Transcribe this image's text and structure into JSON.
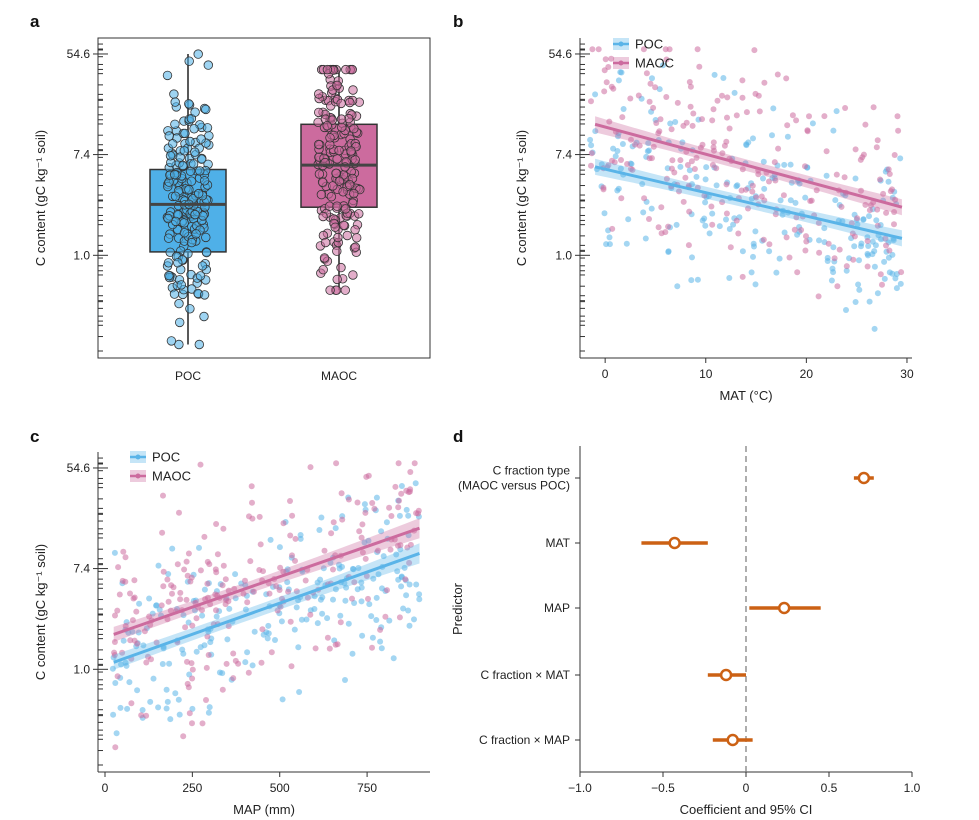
{
  "panels": {
    "a": {
      "letter": "a"
    },
    "b": {
      "letter": "b"
    },
    "c": {
      "letter": "c"
    },
    "d": {
      "letter": "d"
    }
  },
  "colors": {
    "poc": "#5ab4e8",
    "maoc": "#cc6b9e",
    "coef": "#cc6114",
    "box_poc": "#4fb0e8",
    "box_maoc": "#cc6b9e"
  },
  "chart_data": [
    {
      "id": "a",
      "type": "box",
      "categories": [
        "POC",
        "MAOC"
      ],
      "ylabel": "C content (gC kg⁻¹ soil)",
      "yscale": "log",
      "ylim": [
        0.13,
        75
      ],
      "ytick_labels": [
        "54.6",
        "7.4",
        "1.0"
      ],
      "ytick_values": [
        54.6,
        7.4,
        1.0
      ],
      "boxes": [
        {
          "name": "POC",
          "q1": 1.07,
          "median": 2.75,
          "q3": 5.5,
          "whisker_low": 0.17,
          "whisker_high": 54.6
        },
        {
          "name": "MAOC",
          "q1": 2.6,
          "median": 6.0,
          "q3": 13.5,
          "whisker_low": 0.5,
          "whisker_high": 40
        }
      ]
    },
    {
      "id": "b",
      "type": "scatter",
      "xlabel": "MAT (°C)",
      "ylabel": "C content (gC kg⁻¹ soil)",
      "yscale": "log",
      "xlim": [
        -2.5,
        30.5
      ],
      "ylim": [
        0.13,
        75
      ],
      "xticks": [
        0,
        10,
        20,
        30
      ],
      "ytick_labels": [
        "54.6",
        "7.4",
        "1.0"
      ],
      "ytick_values": [
        54.6,
        7.4,
        1.0
      ],
      "legend": [
        "POC",
        "MAOC"
      ],
      "legend_position": "top-left",
      "series": [
        {
          "name": "POC",
          "fit": {
            "x": [
              -1,
              29.5
            ],
            "y": [
              5.8,
              1.4
            ]
          }
        },
        {
          "name": "MAOC",
          "fit": {
            "x": [
              -1,
              29.5
            ],
            "y": [
              13.5,
              2.6
            ]
          }
        }
      ]
    },
    {
      "id": "c",
      "type": "scatter",
      "xlabel": "MAP (mm)",
      "ylabel": "C content (gC kg⁻¹ soil)",
      "yscale": "log",
      "xlim": [
        -20,
        930
      ],
      "ylim": [
        0.13,
        75
      ],
      "xticks": [
        0,
        250,
        500,
        750
      ],
      "ytick_labels": [
        "54.6",
        "7.4",
        "1.0"
      ],
      "ytick_values": [
        54.6,
        7.4,
        1.0
      ],
      "legend": [
        "POC",
        "MAOC"
      ],
      "legend_position": "top-left",
      "series": [
        {
          "name": "POC",
          "fit": {
            "x": [
              25,
              900
            ],
            "y": [
              1.15,
              10.0
            ]
          }
        },
        {
          "name": "MAOC",
          "fit": {
            "x": [
              25,
              900
            ],
            "y": [
              2.0,
              16.5
            ]
          }
        }
      ]
    },
    {
      "id": "d",
      "type": "coefficient",
      "xlabel": "Coefficient and 95% CI",
      "ylabel": "Predictor",
      "xlim": [
        -1.0,
        1.0
      ],
      "xticks": [
        -1.0,
        -0.5,
        0,
        0.5,
        1.0
      ],
      "xtick_labels": [
        "−1.0",
        "−0.5",
        "0",
        "0.5",
        "1.0"
      ],
      "reference_line": 0,
      "predictors": [
        {
          "label_lines": [
            "C fraction type",
            "(MAOC versus POC)"
          ],
          "estimate": 0.71,
          "ci": [
            0.65,
            0.77
          ]
        },
        {
          "label_lines": [
            "MAT"
          ],
          "estimate": -0.43,
          "ci": [
            -0.63,
            -0.23
          ]
        },
        {
          "label_lines": [
            "MAP"
          ],
          "estimate": 0.23,
          "ci": [
            0.02,
            0.45
          ]
        },
        {
          "label_lines": [
            "C fraction × MAT"
          ],
          "estimate": -0.12,
          "ci": [
            -0.23,
            0.0
          ]
        },
        {
          "label_lines": [
            "C fraction × MAP"
          ],
          "estimate": -0.08,
          "ci": [
            -0.2,
            0.04
          ]
        }
      ]
    }
  ]
}
